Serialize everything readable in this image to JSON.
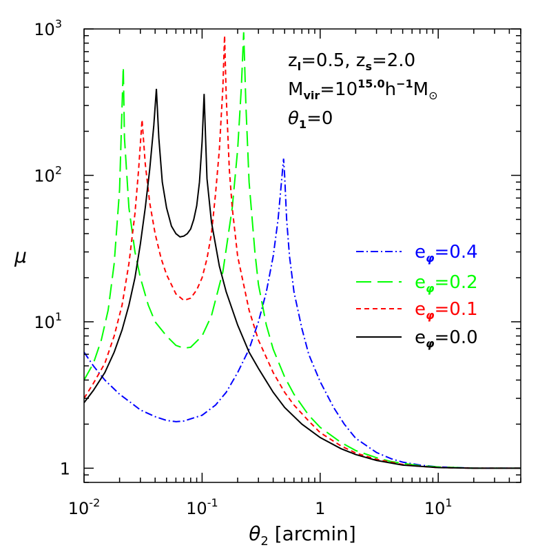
{
  "chart_data": {
    "type": "line",
    "xlabel": "θ₂ [arcmin]",
    "ylabel": "μ",
    "xscale": "log",
    "yscale": "log",
    "xlim": [
      0.01,
      50
    ],
    "ylim": [
      0.8,
      1000
    ],
    "grid": false,
    "legend_position": "right-middle",
    "x_ticks": [
      {
        "value": 0.01,
        "label_base": "10",
        "label_exp": "-2"
      },
      {
        "value": 0.1,
        "label_base": "10",
        "label_exp": "-1"
      },
      {
        "value": 1,
        "label_base": "1",
        "label_exp": ""
      },
      {
        "value": 10,
        "label_base": "10",
        "label_exp": "1"
      }
    ],
    "y_ticks": [
      {
        "value": 1,
        "label_base": "1",
        "label_exp": ""
      },
      {
        "value": 10,
        "label_base": "10",
        "label_exp": "1"
      },
      {
        "value": 100,
        "label_base": "10",
        "label_exp": "2"
      },
      {
        "value": 1000,
        "label_base": "10",
        "label_exp": "3"
      }
    ],
    "annotations": {
      "line1": "z_l=0.5,  z_s=2.0",
      "line2": "M_vir=10^15.0 h^-1 M_⊙",
      "line3": "θ₁=0"
    },
    "series": [
      {
        "name": "e_φ=0.4",
        "color": "#0000ff",
        "dash": "dashdot",
        "points": [
          [
            0.01,
            6.2
          ],
          [
            0.012,
            5.0
          ],
          [
            0.015,
            4.0
          ],
          [
            0.02,
            3.2
          ],
          [
            0.025,
            2.8
          ],
          [
            0.03,
            2.5
          ],
          [
            0.04,
            2.25
          ],
          [
            0.05,
            2.12
          ],
          [
            0.06,
            2.08
          ],
          [
            0.07,
            2.1
          ],
          [
            0.1,
            2.3
          ],
          [
            0.13,
            2.7
          ],
          [
            0.16,
            3.3
          ],
          [
            0.2,
            4.5
          ],
          [
            0.25,
            6.5
          ],
          [
            0.3,
            10
          ],
          [
            0.35,
            16
          ],
          [
            0.4,
            28
          ],
          [
            0.44,
            50
          ],
          [
            0.47,
            90
          ],
          [
            0.49,
            130
          ],
          [
            0.5,
            100
          ],
          [
            0.52,
            50
          ],
          [
            0.55,
            28
          ],
          [
            0.6,
            16
          ],
          [
            0.7,
            9
          ],
          [
            0.8,
            6
          ],
          [
            1,
            3.9
          ],
          [
            1.3,
            2.6
          ],
          [
            1.6,
            2.0
          ],
          [
            2,
            1.6
          ],
          [
            3,
            1.28
          ],
          [
            4,
            1.16
          ],
          [
            5,
            1.1
          ],
          [
            7,
            1.05
          ],
          [
            10,
            1.02
          ],
          [
            15,
            1.01
          ],
          [
            20,
            1.0
          ],
          [
            50,
            1.0
          ]
        ]
      },
      {
        "name": "e_φ=0.2",
        "color": "#00ff00",
        "dash": "longdash",
        "points": [
          [
            0.01,
            4.0
          ],
          [
            0.012,
            5.2
          ],
          [
            0.014,
            7.5
          ],
          [
            0.016,
            12
          ],
          [
            0.018,
            25
          ],
          [
            0.02,
            80
          ],
          [
            0.021,
            300
          ],
          [
            0.0215,
            550
          ],
          [
            0.022,
            180
          ],
          [
            0.024,
            60
          ],
          [
            0.027,
            30
          ],
          [
            0.03,
            20
          ],
          [
            0.035,
            13
          ],
          [
            0.04,
            10
          ],
          [
            0.05,
            8
          ],
          [
            0.06,
            6.9
          ],
          [
            0.07,
            6.6
          ],
          [
            0.08,
            6.7
          ],
          [
            0.1,
            8
          ],
          [
            0.12,
            11
          ],
          [
            0.15,
            22
          ],
          [
            0.18,
            60
          ],
          [
            0.2,
            150
          ],
          [
            0.215,
            400
          ],
          [
            0.225,
            950
          ],
          [
            0.235,
            300
          ],
          [
            0.25,
            90
          ],
          [
            0.28,
            30
          ],
          [
            0.3,
            18
          ],
          [
            0.35,
            9.5
          ],
          [
            0.4,
            6.5
          ],
          [
            0.5,
            4.2
          ],
          [
            0.6,
            3.2
          ],
          [
            0.8,
            2.3
          ],
          [
            1,
            1.9
          ],
          [
            1.5,
            1.5
          ],
          [
            2,
            1.32
          ],
          [
            3,
            1.18
          ],
          [
            4,
            1.11
          ],
          [
            5,
            1.08
          ],
          [
            7,
            1.04
          ],
          [
            10,
            1.02
          ],
          [
            20,
            1.0
          ],
          [
            50,
            1.0
          ]
        ]
      },
      {
        "name": "e_φ=0.1",
        "color": "#ff0000",
        "dash": "shortdash",
        "points": [
          [
            0.01,
            3.0
          ],
          [
            0.012,
            3.8
          ],
          [
            0.015,
            5.2
          ],
          [
            0.018,
            8
          ],
          [
            0.021,
            13
          ],
          [
            0.024,
            25
          ],
          [
            0.027,
            55
          ],
          [
            0.029,
            110
          ],
          [
            0.031,
            240
          ],
          [
            0.033,
            120
          ],
          [
            0.036,
            65
          ],
          [
            0.04,
            40
          ],
          [
            0.045,
            27
          ],
          [
            0.05,
            21
          ],
          [
            0.06,
            15.5
          ],
          [
            0.07,
            14
          ],
          [
            0.08,
            14.5
          ],
          [
            0.09,
            16.5
          ],
          [
            0.1,
            20
          ],
          [
            0.11,
            27
          ],
          [
            0.12,
            40
          ],
          [
            0.13,
            75
          ],
          [
            0.14,
            150
          ],
          [
            0.15,
            400
          ],
          [
            0.155,
            900
          ],
          [
            0.16,
            350
          ],
          [
            0.17,
            110
          ],
          [
            0.18,
            60
          ],
          [
            0.2,
            28
          ],
          [
            0.25,
            12
          ],
          [
            0.3,
            7.5
          ],
          [
            0.4,
            4.5
          ],
          [
            0.5,
            3.3
          ],
          [
            0.6,
            2.7
          ],
          [
            0.8,
            2.1
          ],
          [
            1,
            1.75
          ],
          [
            1.5,
            1.42
          ],
          [
            2,
            1.27
          ],
          [
            3,
            1.15
          ],
          [
            5,
            1.06
          ],
          [
            7,
            1.03
          ],
          [
            10,
            1.01
          ],
          [
            20,
            1.0
          ],
          [
            50,
            1.0
          ]
        ]
      },
      {
        "name": "e_φ=0.0",
        "color": "#000000",
        "dash": "solid",
        "points": [
          [
            0.01,
            2.8
          ],
          [
            0.012,
            3.4
          ],
          [
            0.015,
            4.5
          ],
          [
            0.018,
            6.2
          ],
          [
            0.021,
            8.8
          ],
          [
            0.024,
            13
          ],
          [
            0.027,
            20
          ],
          [
            0.03,
            34
          ],
          [
            0.033,
            60
          ],
          [
            0.036,
            110
          ],
          [
            0.039,
            220
          ],
          [
            0.041,
            390
          ],
          [
            0.043,
            180
          ],
          [
            0.046,
            90
          ],
          [
            0.05,
            60
          ],
          [
            0.055,
            45
          ],
          [
            0.06,
            40
          ],
          [
            0.065,
            38
          ],
          [
            0.07,
            38.5
          ],
          [
            0.075,
            40
          ],
          [
            0.08,
            43
          ],
          [
            0.085,
            50
          ],
          [
            0.09,
            62
          ],
          [
            0.095,
            90
          ],
          [
            0.1,
            170
          ],
          [
            0.104,
            360
          ],
          [
            0.107,
            180
          ],
          [
            0.11,
            95
          ],
          [
            0.12,
            48
          ],
          [
            0.14,
            24
          ],
          [
            0.16,
            16
          ],
          [
            0.2,
            9.5
          ],
          [
            0.25,
            6.2
          ],
          [
            0.3,
            4.8
          ],
          [
            0.4,
            3.3
          ],
          [
            0.5,
            2.6
          ],
          [
            0.7,
            2.0
          ],
          [
            1,
            1.62
          ],
          [
            1.5,
            1.36
          ],
          [
            2,
            1.24
          ],
          [
            3,
            1.13
          ],
          [
            5,
            1.05
          ],
          [
            7,
            1.03
          ],
          [
            10,
            1.01
          ],
          [
            20,
            1.0
          ],
          [
            50,
            1.0
          ]
        ]
      }
    ]
  }
}
